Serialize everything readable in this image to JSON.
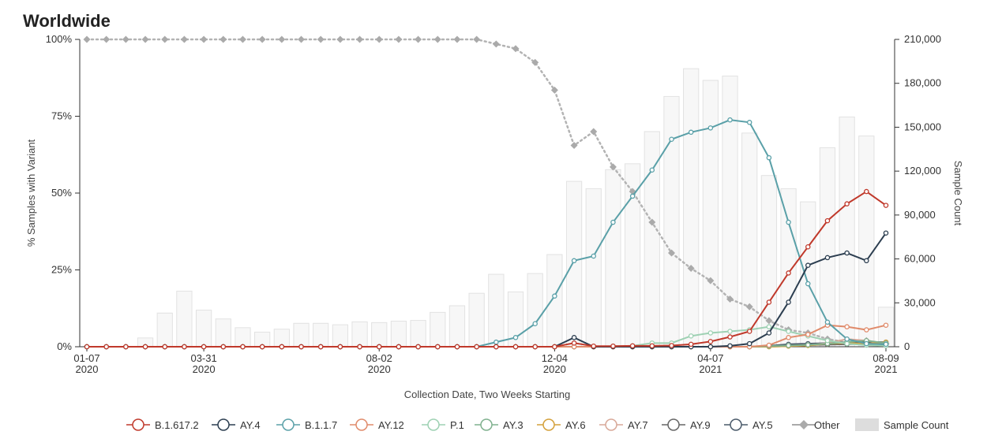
{
  "page": {
    "title": "Worldwide"
  },
  "chart_data": {
    "type": "line",
    "title": "Worldwide",
    "xlabel": "Collection Date, Two Weeks Starting",
    "ylabel": "% Samples with Variant",
    "y2label": "Sample Count",
    "ylim": [
      0,
      100
    ],
    "y2lim": [
      0,
      210000
    ],
    "y_ticks": [
      "0%",
      "25%",
      "50%",
      "75%",
      "100%"
    ],
    "y2_ticks": [
      "0",
      "30,000",
      "60,000",
      "90,000",
      "120,000",
      "150,000",
      "180,000",
      "210,000"
    ],
    "x_ticks": [
      {
        "x": 0,
        "line1": "01-07",
        "line2": "2020"
      },
      {
        "x": 6,
        "line1": "03-31",
        "line2": "2020"
      },
      {
        "x": 15,
        "line1": "08-02",
        "line2": "2020"
      },
      {
        "x": 24,
        "line1": "12-04",
        "line2": "2020"
      },
      {
        "x": 32,
        "line1": "04-07",
        "line2": "2021"
      },
      {
        "x": 41,
        "line1": "08-09",
        "line2": "2021"
      }
    ],
    "n_periods": 42,
    "grid": false,
    "legend_position": "bottom",
    "colors": {
      "B.1.617.2": "#c0392b",
      "AY.4": "#2c3e50",
      "B.1.1.7": "#5aa0a8",
      "AY.12": "#e08b6b",
      "P.1": "#9ed1b3",
      "AY.3": "#7fb08e",
      "AY.6": "#d4a03a",
      "AY.7": "#d8a898",
      "AY.9": "#666666",
      "AY.5": "#4a5a6a",
      "Other": "#b3b3b3",
      "Sample Count": "#dddddd"
    },
    "sample_count": [
      0,
      0,
      0,
      6000,
      23000,
      38000,
      25000,
      19000,
      13000,
      10000,
      12000,
      16000,
      16000,
      15000,
      17000,
      16500,
      17500,
      18000,
      23500,
      28000,
      36500,
      49500,
      37500,
      50000,
      63000,
      113000,
      108000,
      121000,
      125000,
      147000,
      171000,
      190000,
      182000,
      185000,
      146000,
      117000,
      108000,
      99000,
      136000,
      157000,
      144000,
      27000
    ],
    "series": [
      {
        "name": "B.1.617.2",
        "values": [
          0,
          0,
          0,
          0,
          0,
          0,
          0,
          0,
          0,
          0,
          0,
          0,
          0,
          0,
          0,
          0,
          0,
          0,
          0,
          0,
          0,
          0,
          0,
          0,
          0,
          1.2,
          0.2,
          0.2,
          0.3,
          0.3,
          0.4,
          0.8,
          1.7,
          3.2,
          5.0,
          14.5,
          24.0,
          32.5,
          41.0,
          46.5,
          50.5,
          46.0
        ]
      },
      {
        "name": "AY.4",
        "values": [
          0,
          0,
          0,
          0,
          0,
          0,
          0,
          0,
          0,
          0,
          0,
          0,
          0,
          0,
          0,
          0,
          0,
          0,
          0,
          0,
          0,
          0,
          0,
          0,
          0,
          3.0,
          0,
          0,
          0,
          0,
          0,
          0,
          0,
          0.3,
          1.0,
          4.5,
          14.5,
          26.5,
          29.0,
          30.5,
          28.0,
          37.0
        ]
      },
      {
        "name": "B.1.1.7",
        "values": [
          0,
          0,
          0,
          0,
          0,
          0,
          0,
          0,
          0,
          0,
          0,
          0,
          0,
          0,
          0,
          0,
          0,
          0,
          0,
          0,
          0,
          1.5,
          3.0,
          7.5,
          16.5,
          28.0,
          29.5,
          40.5,
          49.0,
          57.5,
          67.5,
          69.8,
          71.2,
          73.8,
          73.0,
          61.5,
          40.5,
          20.5,
          8.0,
          2.5,
          1.0,
          0.8
        ]
      },
      {
        "name": "AY.12",
        "values": [
          0,
          0,
          0,
          0,
          0,
          0,
          0,
          0,
          0,
          0,
          0,
          0,
          0,
          0,
          0,
          0,
          0,
          0,
          0,
          0,
          0,
          0,
          0,
          0,
          0,
          0,
          0,
          0,
          0,
          0,
          0,
          0,
          0,
          0,
          0,
          0.5,
          3.0,
          4.0,
          7.0,
          6.5,
          5.5,
          7.0
        ]
      },
      {
        "name": "P.1",
        "values": [
          0,
          0,
          0,
          0,
          0,
          0,
          0,
          0,
          0,
          0,
          0,
          0,
          0,
          0,
          0,
          0,
          0,
          0,
          0,
          0,
          0,
          0,
          0,
          0,
          0,
          0,
          0,
          0.2,
          0.3,
          1.2,
          1.2,
          3.5,
          4.5,
          5.0,
          5.5,
          6.5,
          5.0,
          3.5,
          2.0,
          1.0,
          0.5,
          0.3
        ]
      },
      {
        "name": "AY.3",
        "values": [
          0,
          0,
          0,
          0,
          0,
          0,
          0,
          0,
          0,
          0,
          0,
          0,
          0,
          0,
          0,
          0,
          0,
          0,
          0,
          0,
          0,
          0,
          0,
          0,
          0,
          0,
          0,
          0,
          0,
          0,
          0,
          0,
          0,
          0,
          0,
          0.2,
          0.4,
          0.6,
          1.0,
          1.5,
          2.0,
          1.2
        ]
      },
      {
        "name": "AY.6",
        "values": [
          0,
          0,
          0,
          0,
          0,
          0,
          0,
          0,
          0,
          0,
          0,
          0,
          0,
          0,
          0,
          0,
          0,
          0,
          0,
          0,
          0,
          0,
          0,
          0,
          0,
          0,
          0,
          0,
          0,
          0,
          0,
          0,
          0,
          0,
          0,
          0,
          0.2,
          0.4,
          1.0,
          1.2,
          1.0,
          1.5
        ]
      },
      {
        "name": "AY.7",
        "values": [
          0,
          0,
          0,
          0,
          0,
          0,
          0,
          0,
          0,
          0,
          0,
          0,
          0,
          0,
          0,
          0,
          0,
          0,
          0,
          0,
          0,
          0,
          0,
          0,
          0,
          0,
          0,
          0,
          0,
          0,
          0,
          0,
          0,
          0,
          0,
          0,
          0.2,
          0.5,
          1.2,
          2.5,
          2.0,
          1.0
        ]
      },
      {
        "name": "AY.9",
        "values": [
          0,
          0,
          0,
          0,
          0,
          0,
          0,
          0,
          0,
          0,
          0,
          0,
          0,
          0,
          0,
          0,
          0,
          0,
          0,
          0,
          0,
          0,
          0,
          0,
          0,
          0,
          0,
          0,
          0,
          0,
          0,
          0,
          0,
          0,
          0,
          0.2,
          0.3,
          0.5,
          0.7,
          0.8,
          1.0,
          0.5
        ]
      },
      {
        "name": "AY.5",
        "values": [
          0,
          0,
          0,
          0,
          0,
          0,
          0,
          0,
          0,
          0,
          0,
          0,
          0,
          0,
          0,
          0,
          0,
          0,
          0,
          0,
          0,
          0,
          0,
          0,
          0,
          0,
          0,
          0,
          0,
          0,
          0,
          0,
          0,
          0,
          0,
          0.3,
          0.8,
          1.0,
          1.2,
          1.5,
          1.5,
          1.5
        ]
      },
      {
        "name": "Other",
        "values": [
          100,
          100,
          100,
          100,
          100,
          100,
          100,
          100,
          100,
          100,
          100,
          100,
          100,
          100,
          100,
          100,
          100,
          100,
          100,
          100,
          100,
          98.5,
          97.0,
          92.5,
          83.5,
          65.5,
          70.0,
          58.5,
          50.5,
          40.5,
          30.5,
          25.5,
          21.5,
          15.5,
          13.0,
          8.5,
          5.5,
          4.5,
          2.5,
          1.5,
          2.0,
          1.0
        ]
      }
    ],
    "legend": [
      "B.1.617.2",
      "AY.4",
      "B.1.1.7",
      "AY.12",
      "P.1",
      "AY.3",
      "AY.6",
      "AY.7",
      "AY.9",
      "AY.5",
      "Other",
      "Sample Count"
    ]
  }
}
